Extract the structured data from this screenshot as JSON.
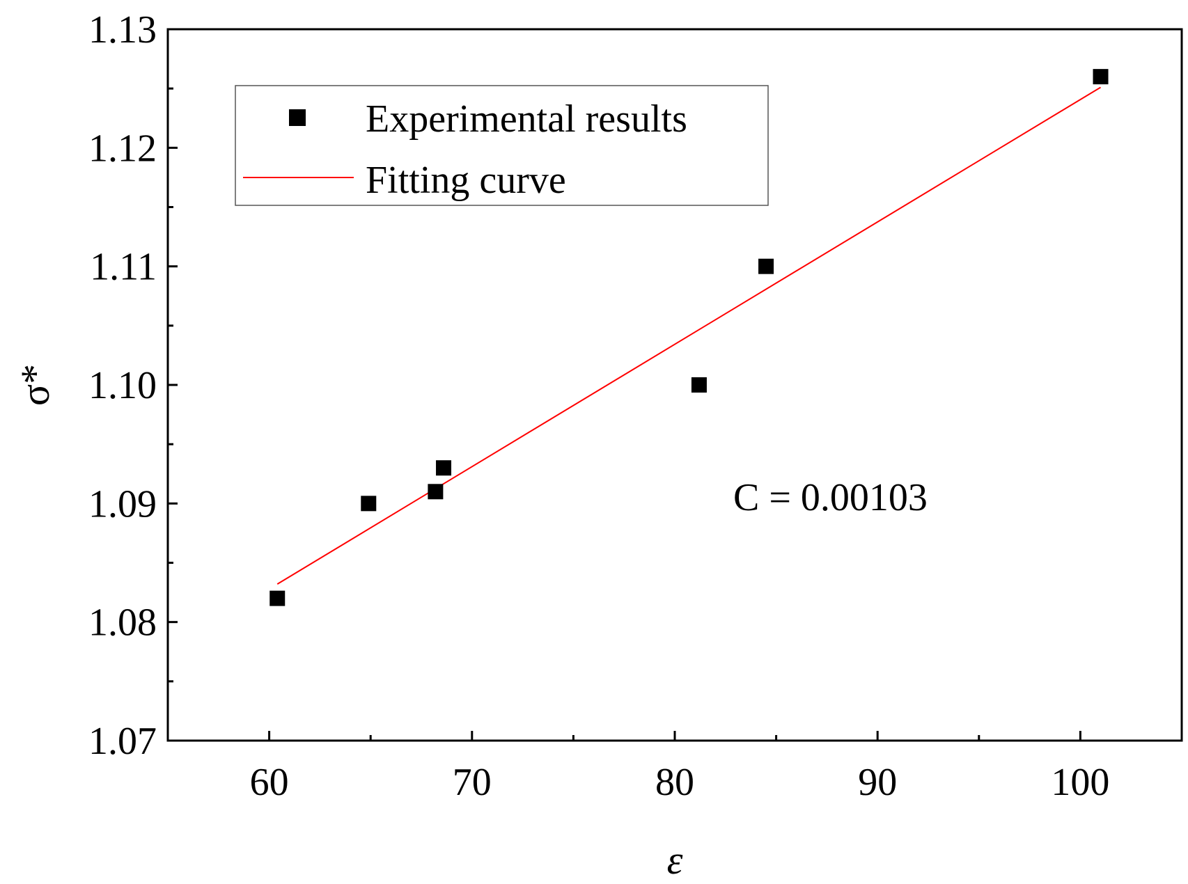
{
  "chart_data": {
    "type": "scatter",
    "title": "",
    "xlabel": "ε",
    "ylabel": "σ*",
    "xlim": [
      55,
      105
    ],
    "ylim": [
      1.07,
      1.13
    ],
    "x_ticks": [
      60,
      70,
      80,
      90,
      100
    ],
    "x_tick_labels": [
      "60",
      "70",
      "80",
      "90",
      "100"
    ],
    "x_minor_ticks": [
      65,
      75,
      85,
      95
    ],
    "y_ticks": [
      1.07,
      1.08,
      1.09,
      1.1,
      1.11,
      1.12,
      1.13
    ],
    "y_tick_labels": [
      "1.07",
      "1.08",
      "1.09",
      "1.10",
      "1.11",
      "1.12",
      "1.13"
    ],
    "y_minor_ticks": [
      1.075,
      1.085,
      1.095,
      1.105,
      1.115,
      1.125
    ],
    "grid": false,
    "series": [
      {
        "name": "Experimental results",
        "kind": "scatter",
        "marker": "square",
        "color": "#000000",
        "points": [
          {
            "x": 60.4,
            "y": 1.082
          },
          {
            "x": 64.9,
            "y": 1.09
          },
          {
            "x": 68.2,
            "y": 1.091
          },
          {
            "x": 68.6,
            "y": 1.093
          },
          {
            "x": 81.2,
            "y": 1.1
          },
          {
            "x": 84.5,
            "y": 1.11
          },
          {
            "x": 101.0,
            "y": 1.126
          }
        ]
      },
      {
        "name": "Fitting curve",
        "kind": "line",
        "color": "#ff0000",
        "points": [
          {
            "x": 60.4,
            "y": 1.0832
          },
          {
            "x": 101.0,
            "y": 1.1251
          }
        ]
      }
    ],
    "legend": {
      "position": "top-left",
      "entries": [
        "Experimental results",
        "Fitting curve"
      ]
    },
    "annotations": [
      {
        "text": "C = 0.00103",
        "x": 83,
        "y": 1.09
      }
    ]
  }
}
